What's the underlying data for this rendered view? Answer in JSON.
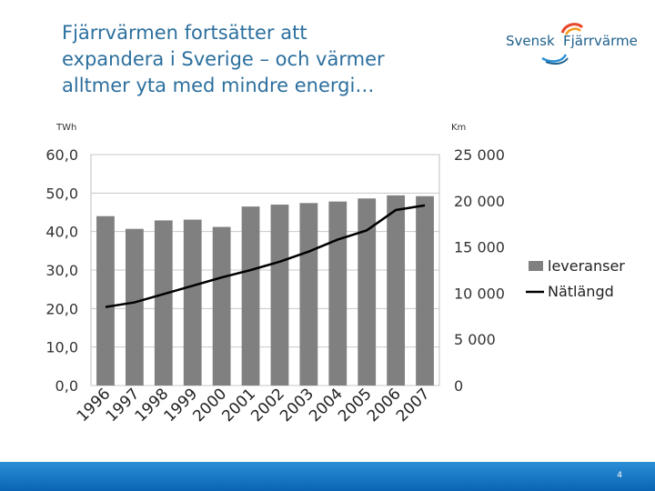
{
  "slide": {
    "title_lines": [
      "Fjärrvärmen fortsätter att",
      "expandera i Sverige – och värmer",
      "alltmer yta med mindre energi…"
    ],
    "page_number": "4"
  },
  "logo": {
    "text_part1": "Svensk",
    "text_part2": "Fjärrvärme",
    "colors": [
      "#e8472b",
      "#f39a1f",
      "#2b8fd6",
      "#1d5f8c"
    ]
  },
  "chart_data": {
    "type": "bar",
    "categories": [
      "1996",
      "1997",
      "1998",
      "1999",
      "2000",
      "2001",
      "2002",
      "2003",
      "2004",
      "2005",
      "2006",
      "2007"
    ],
    "series": [
      {
        "name": "leveranser",
        "type": "bar",
        "axis": "left",
        "color": "#808080",
        "values": [
          44.0,
          40.7,
          42.9,
          43.1,
          41.2,
          46.5,
          47.0,
          47.4,
          47.8,
          48.6,
          49.4,
          49.2
        ]
      },
      {
        "name": "Nätlängd",
        "type": "line",
        "axis": "right",
        "color": "#000000",
        "values": [
          8500,
          9000,
          9900,
          10800,
          11700,
          12500,
          13400,
          14500,
          15800,
          16800,
          19000,
          19500
        ]
      }
    ],
    "left_axis": {
      "unit_label": "TWh",
      "ylim": [
        0,
        60
      ],
      "ticks": [
        "0,0",
        "10,0",
        "20,0",
        "30,0",
        "40,0",
        "50,0",
        "60,0"
      ]
    },
    "right_axis": {
      "unit_label": "Km",
      "ylim": [
        0,
        25000
      ],
      "ticks": [
        "0",
        "5 000",
        "10 000",
        "15 000",
        "20 000",
        "25 000"
      ]
    },
    "grid": true,
    "legend_position": "right"
  }
}
